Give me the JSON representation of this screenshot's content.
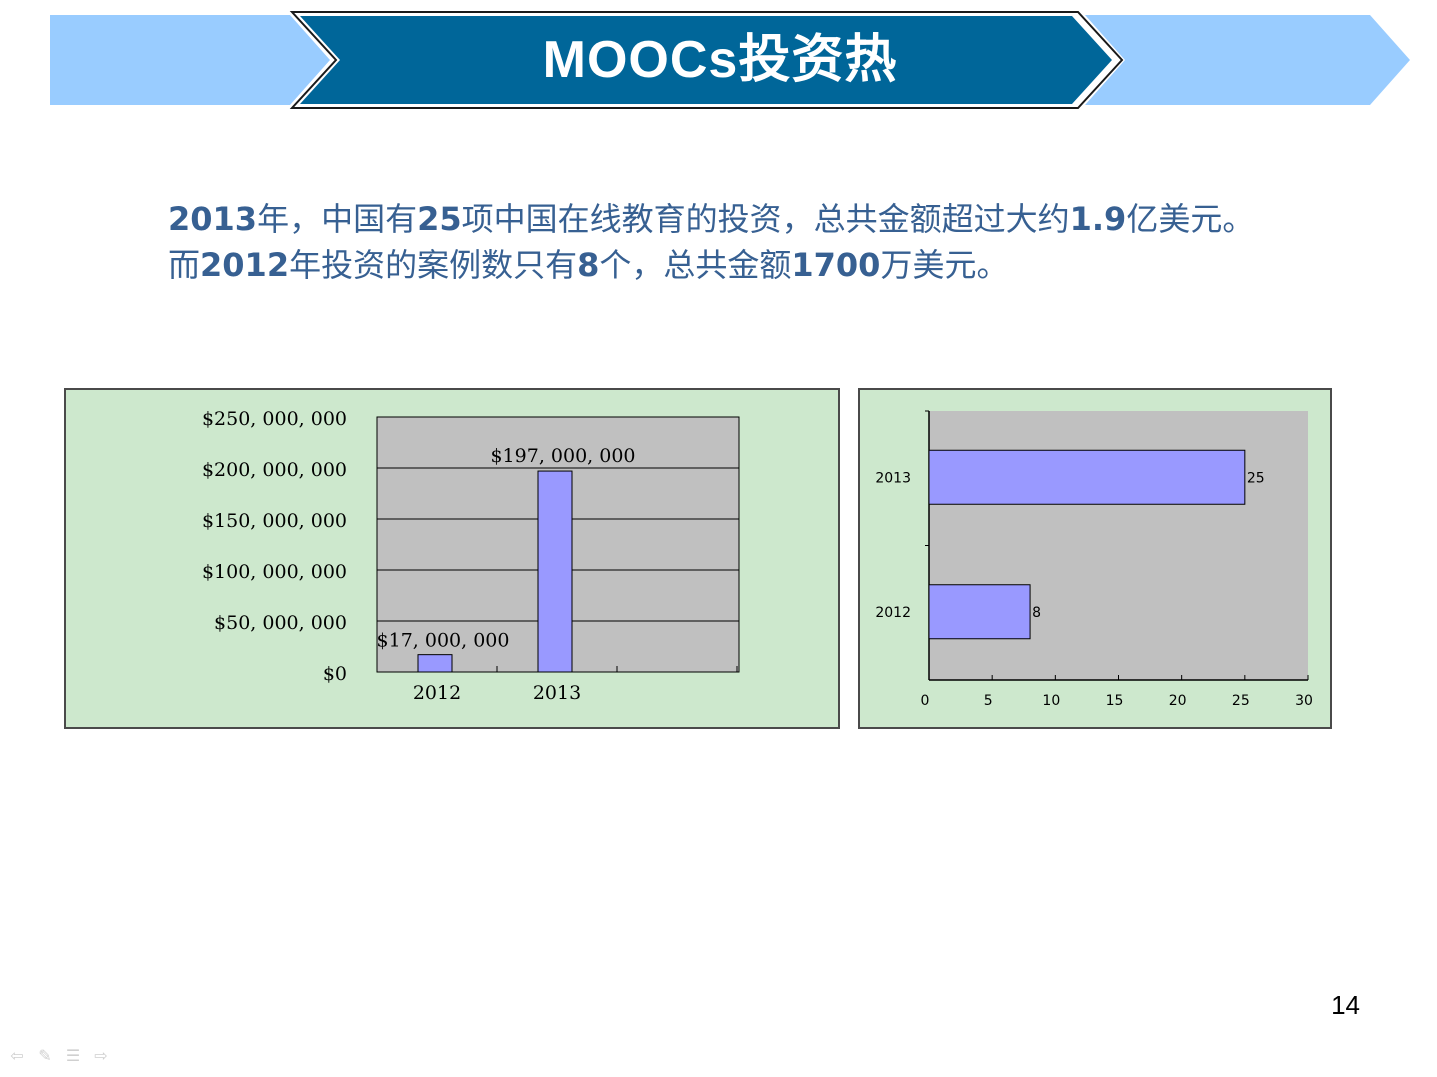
{
  "slide": {
    "title": "MOOCs投资热",
    "body_lines": [
      [
        {
          "t": "2013",
          "b": true
        },
        {
          "t": "年，中国有",
          "b": false
        },
        {
          "t": "25",
          "b": true
        },
        {
          "t": "项中国在线教育的投资，总共金额超过大约",
          "b": false
        },
        {
          "t": "1.9",
          "b": true
        },
        {
          "t": "亿美元。",
          "b": false
        }
      ],
      [
        {
          "t": "而",
          "b": false
        },
        {
          "t": "2012",
          "b": true
        },
        {
          "t": "年投资的案例数只有",
          "b": false
        },
        {
          "t": "8",
          "b": true
        },
        {
          "t": "个，总共金额",
          "b": false
        },
        {
          "t": "1700",
          "b": true
        },
        {
          "t": "万美元。",
          "b": false
        }
      ]
    ],
    "page_number": "14",
    "colors": {
      "banner_light": "#99ccff",
      "banner_dark": "#006699",
      "body_text": "#376092",
      "panel_bg": "#cde8cd",
      "plot_bg": "#c0c0c0",
      "bar_fill": "#9999ff"
    },
    "nav_icons": [
      "back-arrow-icon",
      "pen-icon",
      "menu-icon",
      "forward-arrow-icon"
    ]
  },
  "chart_data": [
    {
      "type": "bar",
      "orientation": "vertical",
      "categories": [
        "2012",
        "2013"
      ],
      "values": [
        17000000,
        197000000
      ],
      "data_labels": [
        "$17, 000, 000",
        "$197, 000, 000"
      ],
      "y_ticks": [
        0,
        50000000,
        100000000,
        150000000,
        200000000,
        250000000
      ],
      "y_tick_labels": [
        "$0",
        "$50, 000, 000",
        "$100, 000, 000",
        "$150, 000, 000",
        "$200, 000, 000",
        "$250, 000, 000"
      ],
      "ylim": [
        0,
        250000000
      ],
      "grid": true,
      "title": "",
      "xlabel": "",
      "ylabel": ""
    },
    {
      "type": "bar",
      "orientation": "horizontal",
      "categories": [
        "2013",
        "2012"
      ],
      "values": [
        25,
        8
      ],
      "data_labels": [
        "25",
        "8"
      ],
      "x_ticks": [
        0,
        5,
        10,
        15,
        20,
        25,
        30
      ],
      "x_tick_labels": [
        "0",
        "5",
        "10",
        "15",
        "20",
        "25",
        "30"
      ],
      "xlim": [
        0,
        30
      ],
      "grid": false,
      "title": "",
      "xlabel": "",
      "ylabel": ""
    }
  ]
}
